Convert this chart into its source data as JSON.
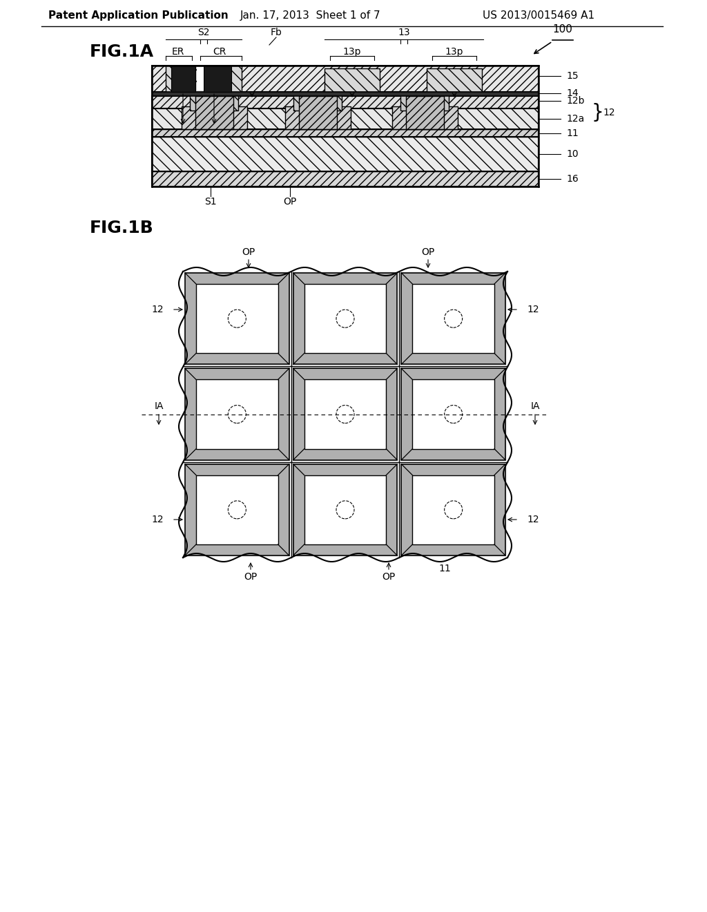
{
  "bg_color": "#ffffff",
  "header_text": "Patent Application Publication",
  "header_date": "Jan. 17, 2013  Sheet 1 of 7",
  "header_patent": "US 2013/0015469 A1",
  "fig1a_label": "FIG.1A",
  "fig1b_label": "FIG.1B",
  "title_fontsize": 13,
  "label_fontsize": 11,
  "small_fontsize": 10
}
